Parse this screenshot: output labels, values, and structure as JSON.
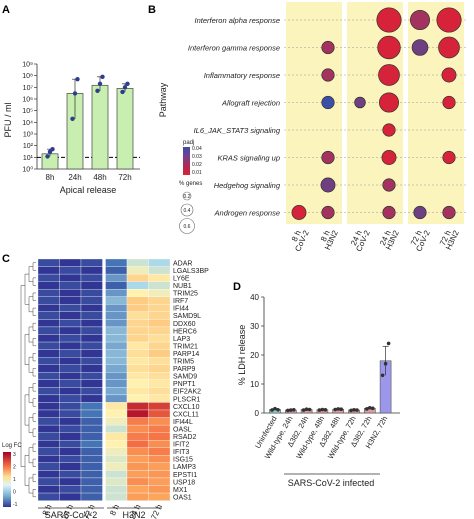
{
  "panels": {
    "A": "A",
    "B": "B",
    "C": "C",
    "D": "D"
  },
  "chart_data": [
    {
      "panel": "A",
      "type": "bar",
      "categories": [
        "8h",
        "24h",
        "48h",
        "72h"
      ],
      "values": [
        20,
        3000000,
        15000000,
        8000000
      ],
      "points": [
        [
          12,
          30,
          50
        ],
        [
          20000,
          3000000,
          50000000
        ],
        [
          5000000,
          20000000,
          80000000
        ],
        [
          4000000,
          10000000,
          20000000
        ]
      ],
      "xlabel": "Apical release",
      "ylabel": "PFU / ml",
      "yscale": "log",
      "ylim": [
        1,
        1000000000
      ],
      "yticks": [
        "10⁰",
        "10¹",
        "10²",
        "10³",
        "10⁴",
        "10⁵",
        "10⁶",
        "10⁷",
        "10⁸",
        "10⁹"
      ],
      "bar_color": "#c8efb0",
      "point_color": "#2e3d8f",
      "dashed_line_y": 10
    },
    {
      "panel": "B",
      "type": "scatter",
      "ylabel": "Pathway",
      "pathways": [
        "Interferon alpha response",
        "Interferon gamma response",
        "Inflammatory response",
        "Allograft rejection",
        "IL6_JAK_STAT3 signaling",
        "KRAS signaling up",
        "Hedgehog signaling",
        "Androgen response"
      ],
      "columns": [
        "8 h CoV-2",
        "8 h H3N2",
        "24 h CoV-2",
        "24 h H3N2",
        "72 h CoV-2",
        "72 h H3N2"
      ],
      "column_labels": [
        [
          "8 h",
          "CoV-2"
        ],
        [
          "8 h",
          "H3N2"
        ],
        [
          "24 h",
          "CoV-2"
        ],
        [
          "24 h",
          "H3N2"
        ],
        [
          "72 h",
          "CoV-2"
        ],
        [
          "72 h",
          "H3N2"
        ]
      ],
      "dots": [
        {
          "pathway": 0,
          "col": 3,
          "size": 0.6,
          "padj": 0.01
        },
        {
          "pathway": 0,
          "col": 4,
          "size": 0.45,
          "padj": 0.02
        },
        {
          "pathway": 0,
          "col": 5,
          "size": 0.6,
          "padj": 0.01
        },
        {
          "pathway": 1,
          "col": 1,
          "size": 0.25,
          "padj": 0.02
        },
        {
          "pathway": 1,
          "col": 3,
          "size": 0.55,
          "padj": 0.01
        },
        {
          "pathway": 1,
          "col": 4,
          "size": 0.35,
          "padj": 0.03
        },
        {
          "pathway": 1,
          "col": 5,
          "size": 0.5,
          "padj": 0.01
        },
        {
          "pathway": 2,
          "col": 1,
          "size": 0.25,
          "padj": 0.02
        },
        {
          "pathway": 2,
          "col": 3,
          "size": 0.5,
          "padj": 0.01
        },
        {
          "pathway": 2,
          "col": 5,
          "size": 0.3,
          "padj": 0.01
        },
        {
          "pathway": 3,
          "col": 1,
          "size": 0.25,
          "padj": 0.04
        },
        {
          "pathway": 3,
          "col": 2,
          "size": 0.2,
          "padj": 0.03
        },
        {
          "pathway": 3,
          "col": 3,
          "size": 0.45,
          "padj": 0.01
        },
        {
          "pathway": 3,
          "col": 5,
          "size": 0.25,
          "padj": 0.01
        },
        {
          "pathway": 4,
          "col": 3,
          "size": 0.25,
          "padj": 0.01
        },
        {
          "pathway": 5,
          "col": 1,
          "size": 0.25,
          "padj": 0.02
        },
        {
          "pathway": 5,
          "col": 3,
          "size": 0.3,
          "padj": 0.01
        },
        {
          "pathway": 5,
          "col": 5,
          "size": 0.25,
          "padj": 0.01
        },
        {
          "pathway": 6,
          "col": 1,
          "size": 0.3,
          "padj": 0.03
        },
        {
          "pathway": 6,
          "col": 3,
          "size": 0.25,
          "padj": 0.02
        },
        {
          "pathway": 7,
          "col": 0,
          "size": 0.3,
          "padj": 0.01
        },
        {
          "pathway": 7,
          "col": 1,
          "size": 0.25,
          "padj": 0.02
        },
        {
          "pathway": 7,
          "col": 3,
          "size": 0.25,
          "padj": 0.02
        },
        {
          "pathway": 7,
          "col": 4,
          "size": 0.25,
          "padj": 0.03
        },
        {
          "pathway": 7,
          "col": 5,
          "size": 0.25,
          "padj": 0.02
        }
      ],
      "color_legend": {
        "title": "padj",
        "ticks": [
          "0.04",
          "0.03",
          "0.02",
          "0.01"
        ]
      },
      "size_legend": {
        "title": "% genes",
        "values": [
          "0.2",
          "0.4",
          "0.6"
        ]
      },
      "highlight_color": "#fbf5bd"
    },
    {
      "panel": "C",
      "type": "heatmap",
      "rows": [
        "ADAR",
        "LGALS3BP",
        "LY6E",
        "NUB1",
        "TRIM25",
        "IRF7",
        "IFI44",
        "SAMD9L",
        "DDX60",
        "HERC6",
        "LAP3",
        "TRIM21",
        "PARP14",
        "TRIM5",
        "PARP9",
        "SAMD9",
        "PNPT1",
        "EIF2AK2",
        "PLSCR1",
        "CXCL10",
        "CXCL11",
        "IFI44L",
        "OASL",
        "RSAD2",
        "IFIT2",
        "IFIT3",
        "ISG15",
        "LAMP3",
        "EPSTI1",
        "USP18",
        "MX1",
        "OAS1"
      ],
      "columns": [
        "8 h",
        "24 h",
        "72 h",
        "8 h",
        "24 h",
        "72 h"
      ],
      "groups": [
        {
          "label": "SARS-CoV-2",
          "span": 3
        },
        {
          "label": "H3N2",
          "span": 3
        }
      ],
      "values": [
        [
          -1.0,
          -1.2,
          -1.0,
          -0.6,
          0.2,
          0.0
        ],
        [
          -1.2,
          -1.0,
          -1.2,
          -0.8,
          0.4,
          0.2
        ],
        [
          -1.0,
          -1.2,
          -1.0,
          -0.4,
          0.8,
          0.6
        ],
        [
          -1.2,
          -1.0,
          -1.2,
          -0.8,
          0.0,
          0.2
        ],
        [
          -1.0,
          -1.2,
          -1.0,
          -0.4,
          0.5,
          0.4
        ],
        [
          -1.0,
          -1.2,
          -1.0,
          -0.2,
          0.9,
          0.8
        ],
        [
          -1.2,
          -1.0,
          -1.2,
          -0.4,
          0.9,
          0.8
        ],
        [
          -1.0,
          -1.2,
          -1.0,
          -0.4,
          0.7,
          0.8
        ],
        [
          -1.2,
          -1.0,
          -1.2,
          -0.4,
          0.8,
          0.9
        ],
        [
          -1.0,
          -1.2,
          -1.0,
          -0.2,
          0.8,
          0.8
        ],
        [
          -1.2,
          -1.0,
          -1.2,
          -0.2,
          0.8,
          0.7
        ],
        [
          -1.0,
          -1.2,
          -1.0,
          -0.3,
          0.6,
          0.8
        ],
        [
          -1.2,
          -1.0,
          -1.2,
          -0.2,
          0.7,
          0.9
        ],
        [
          -1.0,
          -1.2,
          -1.0,
          -0.2,
          0.6,
          0.7
        ],
        [
          -1.2,
          -1.0,
          -1.2,
          -0.3,
          0.7,
          0.8
        ],
        [
          -1.0,
          -1.2,
          -1.0,
          -0.4,
          0.6,
          0.7
        ],
        [
          -1.2,
          -1.0,
          -1.2,
          -0.4,
          0.5,
          0.6
        ],
        [
          -1.0,
          -1.2,
          -1.0,
          -0.3,
          0.6,
          0.7
        ],
        [
          -1.2,
          -1.0,
          -1.2,
          -0.4,
          0.5,
          0.6
        ],
        [
          -1.2,
          -1.0,
          -0.6,
          0.6,
          2.6,
          2.4
        ],
        [
          -1.2,
          -1.0,
          -0.6,
          0.5,
          2.8,
          2.2
        ],
        [
          -1.0,
          -1.2,
          -0.8,
          0.4,
          1.8,
          1.6
        ],
        [
          -1.2,
          -1.0,
          -0.8,
          0.2,
          1.6,
          1.8
        ],
        [
          -1.0,
          -1.2,
          -0.8,
          0.6,
          1.8,
          1.9
        ],
        [
          -1.2,
          -1.0,
          -0.6,
          0.5,
          2.0,
          1.6
        ],
        [
          -1.0,
          -1.2,
          -0.8,
          0.4,
          1.6,
          1.8
        ],
        [
          -1.2,
          -1.0,
          -0.8,
          0.3,
          1.4,
          1.6
        ],
        [
          -1.0,
          -1.2,
          -0.8,
          0.4,
          1.5,
          1.4
        ],
        [
          -1.2,
          -1.0,
          -0.8,
          0.2,
          1.4,
          1.5
        ],
        [
          -1.0,
          -1.2,
          -0.8,
          0.3,
          1.6,
          1.4
        ],
        [
          -1.2,
          -1.0,
          -0.8,
          0.2,
          1.3,
          1.5
        ],
        [
          -1.0,
          -1.2,
          -0.8,
          0.2,
          1.4,
          1.3
        ]
      ],
      "legend": {
        "title": "Log FC",
        "ticks": [
          "3",
          "2",
          "1",
          "0",
          "-1"
        ]
      },
      "scale": [
        -1.2,
        3.0
      ]
    },
    {
      "panel": "D",
      "type": "bar",
      "categories": [
        "Uninfected",
        "Wild-type, 24h",
        "Δ382, 24h",
        "Wild-type, 48h",
        "Δ382, 48h",
        "Wild-type, 72h",
        "Δ382, 72h",
        "H3N2, 72h"
      ],
      "values": [
        1.2,
        1.0,
        1.2,
        1.1,
        1.3,
        1.0,
        1.6,
        18.0
      ],
      "errors": [
        0.3,
        0.2,
        0.2,
        0.2,
        0.2,
        0.3,
        0.3,
        5.0
      ],
      "points": [
        [
          1.0,
          1.5,
          1.1
        ],
        [
          0.9,
          1.0,
          1.1
        ],
        [
          1.0,
          1.3,
          1.2
        ],
        [
          1.0,
          1.2,
          1.1
        ],
        [
          1.2,
          1.4,
          1.3
        ],
        [
          0.9,
          1.1,
          1.0
        ],
        [
          1.4,
          1.8,
          1.6
        ],
        [
          13.0,
          17.0,
          24.0
        ]
      ],
      "colors": [
        "#8fcfd9",
        "#e09aa3",
        "#e09aa3",
        "#e09aa3",
        "#e09aa3",
        "#e09aa3",
        "#e09aa3",
        "#9c97ea"
      ],
      "ylabel": "% LDH release",
      "ylim": [
        0,
        40
      ],
      "yticks": [
        "0",
        "10",
        "20",
        "30",
        "40"
      ],
      "group_label": "SARS-CoV-2 infected"
    }
  ]
}
